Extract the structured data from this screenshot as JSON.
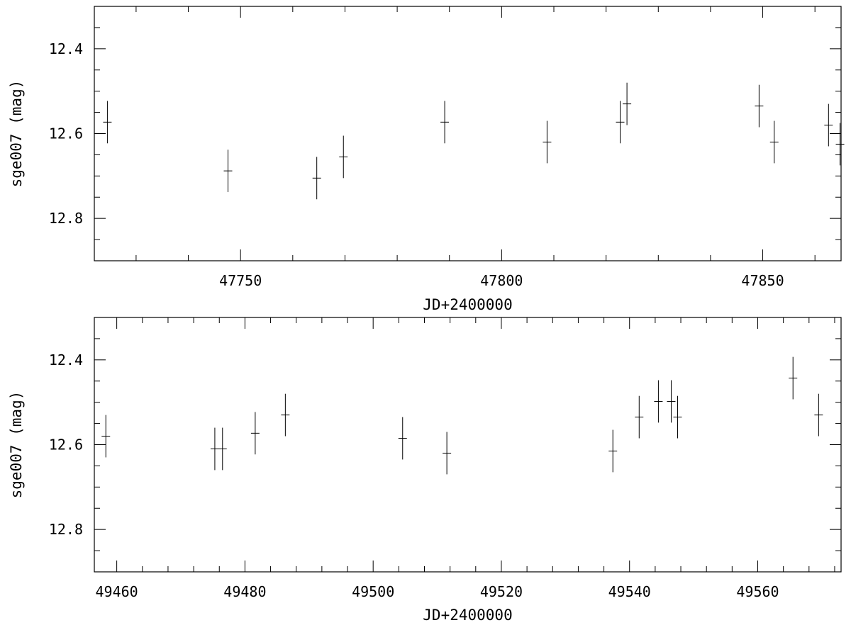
{
  "chart_data": [
    {
      "type": "scatter",
      "title": "",
      "xlabel": "JD+2400000",
      "ylabel": "sge007 (mag)",
      "xlim": [
        47722,
        47865
      ],
      "ylim": [
        12.9,
        12.3
      ],
      "y_inverted": true,
      "x_ticks": [
        47750,
        47800,
        47850
      ],
      "y_ticks": [
        12.4,
        12.6,
        12.8
      ],
      "x_tick_labels": [
        "47750",
        "47800",
        "47850"
      ],
      "y_tick_labels": [
        "12.4",
        "12.6",
        "12.8"
      ],
      "grid": false,
      "points": [
        {
          "x": 47724.5,
          "y": 12.573,
          "err": 0.05
        },
        {
          "x": 47747.6,
          "y": 12.688,
          "err": 0.05
        },
        {
          "x": 47764.6,
          "y": 12.705,
          "err": 0.05
        },
        {
          "x": 47769.7,
          "y": 12.655,
          "err": 0.05
        },
        {
          "x": 47789.1,
          "y": 12.573,
          "err": 0.05
        },
        {
          "x": 47808.7,
          "y": 12.62,
          "err": 0.05
        },
        {
          "x": 47822.7,
          "y": 12.573,
          "err": 0.05
        },
        {
          "x": 47824.0,
          "y": 12.53,
          "err": 0.05
        },
        {
          "x": 47849.3,
          "y": 12.535,
          "err": 0.05
        },
        {
          "x": 47852.2,
          "y": 12.62,
          "err": 0.05
        },
        {
          "x": 47862.6,
          "y": 12.58,
          "err": 0.05
        },
        {
          "x": 47864.8,
          "y": 12.625,
          "err": 0.05
        }
      ]
    },
    {
      "type": "scatter",
      "title": "",
      "xlabel": "JD+2400000",
      "ylabel": "sge007 (mag)",
      "xlim": [
        49456.5,
        49573
      ],
      "ylim": [
        12.9,
        12.3
      ],
      "y_inverted": true,
      "x_ticks": [
        49460,
        49480,
        49500,
        49520,
        49540,
        49560
      ],
      "y_ticks": [
        12.4,
        12.6,
        12.8
      ],
      "x_tick_labels": [
        "49460",
        "49480",
        "49500",
        "49520",
        "49540",
        "49560"
      ],
      "y_tick_labels": [
        "12.4",
        "12.6",
        "12.8"
      ],
      "grid": false,
      "points": [
        {
          "x": 49458.3,
          "y": 12.58,
          "err": 0.05
        },
        {
          "x": 49475.3,
          "y": 12.61,
          "err": 0.05
        },
        {
          "x": 49476.5,
          "y": 12.61,
          "err": 0.05
        },
        {
          "x": 49481.6,
          "y": 12.573,
          "err": 0.05
        },
        {
          "x": 49486.3,
          "y": 12.53,
          "err": 0.05
        },
        {
          "x": 49504.6,
          "y": 12.585,
          "err": 0.05
        },
        {
          "x": 49511.5,
          "y": 12.62,
          "err": 0.05
        },
        {
          "x": 49537.4,
          "y": 12.615,
          "err": 0.05
        },
        {
          "x": 49541.5,
          "y": 12.535,
          "err": 0.05
        },
        {
          "x": 49544.5,
          "y": 12.498,
          "err": 0.05
        },
        {
          "x": 49546.5,
          "y": 12.498,
          "err": 0.05
        },
        {
          "x": 49547.5,
          "y": 12.535,
          "err": 0.05
        },
        {
          "x": 49565.5,
          "y": 12.443,
          "err": 0.05
        },
        {
          "x": 49569.5,
          "y": 12.53,
          "err": 0.05
        }
      ]
    }
  ]
}
